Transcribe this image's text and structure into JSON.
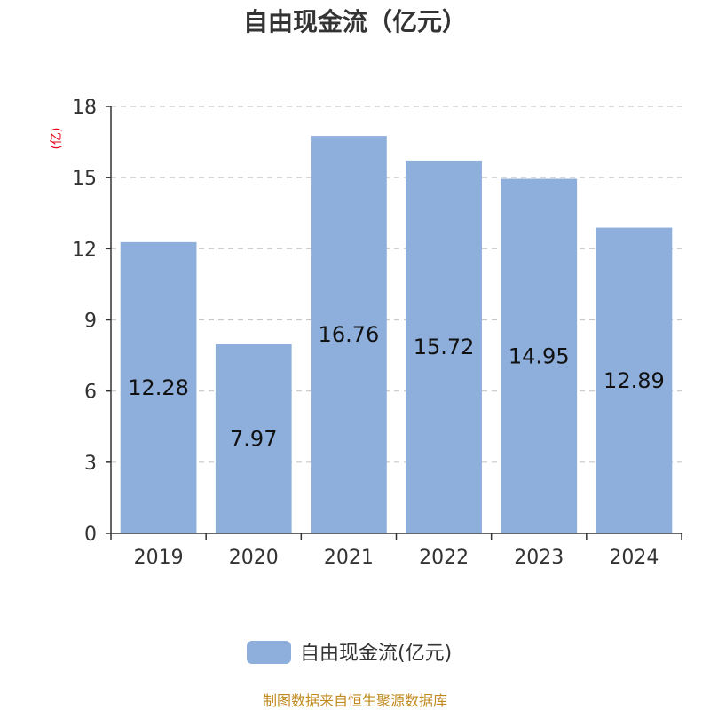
{
  "chart_data": {
    "type": "bar",
    "title": "自由现金流（亿元）",
    "ylabel": "(亿)",
    "xlabel": "",
    "categories": [
      "2019",
      "2020",
      "2021",
      "2022",
      "2023",
      "2024"
    ],
    "series": [
      {
        "name": "自由现金流(亿元)",
        "values": [
          12.28,
          7.97,
          16.76,
          15.72,
          14.95,
          12.89
        ]
      }
    ],
    "data_labels": [
      "12.28",
      "7.97",
      "16.76",
      "15.72",
      "14.95",
      "12.89"
    ],
    "ylim": [
      0,
      18
    ],
    "yticks": [
      0,
      3,
      6,
      9,
      12,
      15,
      18
    ],
    "grid": true,
    "legend_position": "bottom",
    "bar_color": "#8eaedb"
  },
  "source_text": "制图数据来自恒生聚源数据库"
}
